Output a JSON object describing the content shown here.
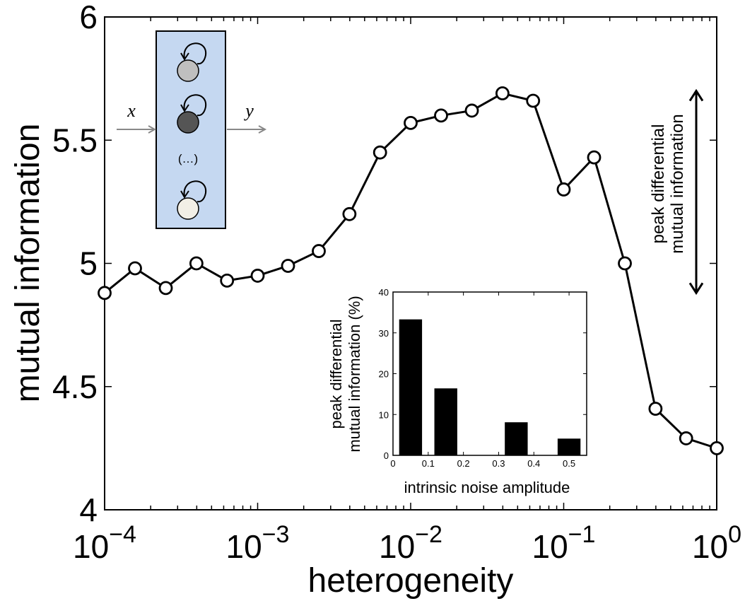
{
  "chart_data": [
    {
      "type": "line",
      "xlabel": "heterogeneity",
      "ylabel": "mutual information",
      "xscale": "log",
      "xlim": [
        0.0001,
        1
      ],
      "ylim": [
        4,
        6
      ],
      "yticks": [
        "4",
        "4.5",
        "5",
        "5.5",
        "6"
      ],
      "xticks": [
        {
          "base": "10",
          "exp": "−4"
        },
        {
          "base": "10",
          "exp": "−3"
        },
        {
          "base": "10",
          "exp": "−2"
        },
        {
          "base": "10",
          "exp": "−1"
        },
        {
          "base": "10",
          "exp": "0"
        }
      ],
      "marker": "open-circle",
      "x": [
        0.0001,
        0.000158,
        0.000251,
        0.000398,
        0.000631,
        0.001,
        0.00158,
        0.00251,
        0.00398,
        0.00631,
        0.01,
        0.0158,
        0.0251,
        0.0398,
        0.0631,
        0.1,
        0.158,
        0.251,
        0.398,
        0.631,
        1
      ],
      "y": [
        4.88,
        4.98,
        4.9,
        5.0,
        4.93,
        4.95,
        4.99,
        5.05,
        5.2,
        5.45,
        5.57,
        5.6,
        5.62,
        5.69,
        5.66,
        5.3,
        5.43,
        5.0,
        4.41,
        4.29,
        4.25
      ],
      "annotation": {
        "line1": "peak differential",
        "line2": "mutual information",
        "type": "double-arrow",
        "y_range": [
          4.88,
          5.7
        ]
      }
    },
    {
      "type": "bar",
      "xlabel": "intrinsic noise amplitude",
      "ylabel_line1": "peak differential",
      "ylabel_line2": "mutual information (%)",
      "xlim": [
        0,
        0.55
      ],
      "ylim": [
        0,
        40
      ],
      "xticks": [
        "0",
        "0.1",
        "0.2",
        "0.3",
        "0.4",
        "0.5"
      ],
      "yticks": [
        "0",
        "10",
        "20",
        "30",
        "40"
      ],
      "bar_width": 0.065,
      "x": [
        0.05,
        0.15,
        0.25,
        0.35,
        0.45,
        0.5
      ],
      "values": [
        33.3,
        16.4,
        0,
        8.1,
        0,
        4.1
      ]
    }
  ],
  "schematic": {
    "input_label": "x",
    "output_label": "y",
    "ellipsis": "(…)",
    "node_colors": [
      "#bfbfbf",
      "#555555",
      "#f2efe6"
    ],
    "box_fill": "#c5d8f1",
    "arrow_color": "#888888"
  }
}
